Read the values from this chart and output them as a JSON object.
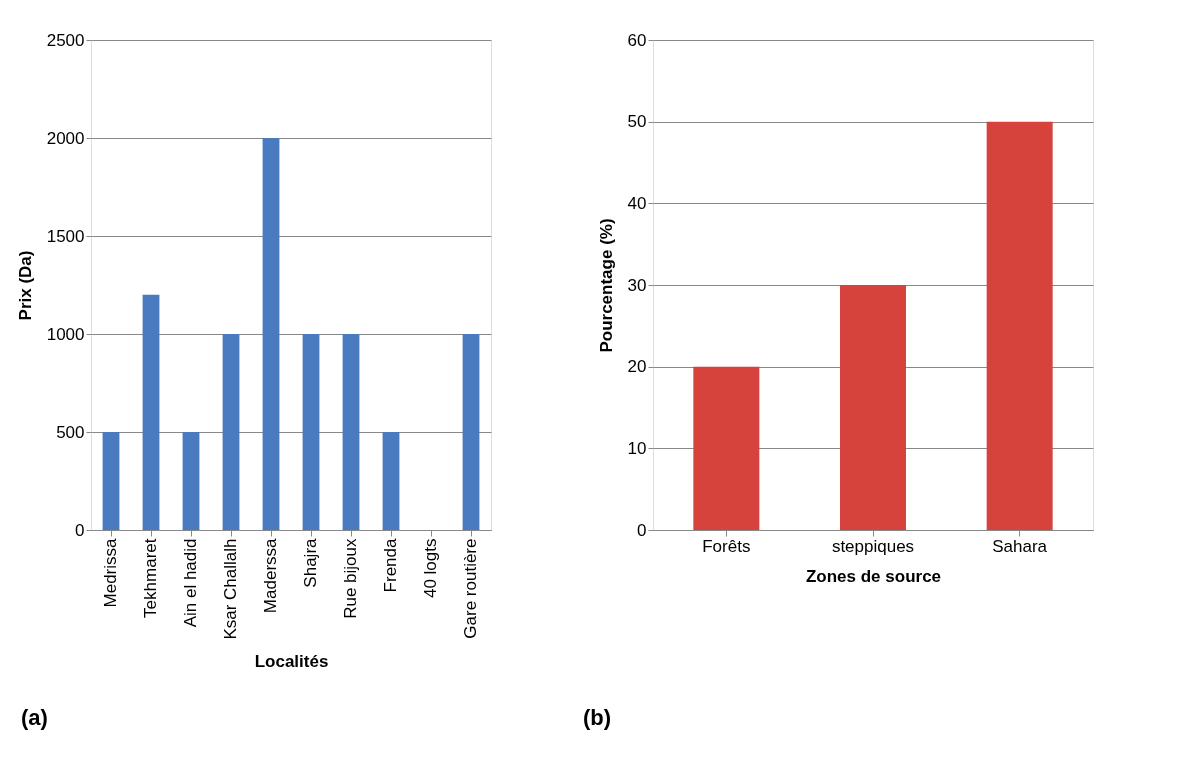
{
  "chart_data": [
    {
      "type": "bar",
      "xlabel": "Localités",
      "ylabel": "Prix (Da)",
      "annotations": [
        "(a)"
      ],
      "categories": [
        "Medrissa",
        "Tekhmaret",
        "Ain el hadid",
        "Ksar Challalh",
        "Maderssa",
        "Shajra",
        "Rue bijoux",
        "Frenda",
        "40 logts",
        "Gare routière"
      ],
      "values": [
        500,
        1200,
        500,
        1000,
        2000,
        1000,
        1000,
        500,
        null,
        1000
      ],
      "color": "#4a7bc0",
      "ylim": [
        0,
        2500
      ],
      "yticks": [
        0,
        500,
        1000,
        1500,
        2000,
        2500
      ],
      "grid": "y"
    },
    {
      "type": "bar",
      "xlabel": "Zones de source",
      "ylabel": "Pourcentage (%)",
      "annotations": [
        "(b)"
      ],
      "categories": [
        "Forêts",
        "steppiques",
        "Sahara"
      ],
      "values": [
        20,
        30,
        50
      ],
      "color": "#d6423c",
      "ylim": [
        0,
        60
      ],
      "yticks": [
        0,
        10,
        20,
        30,
        40,
        50,
        60
      ],
      "grid": "y"
    }
  ]
}
